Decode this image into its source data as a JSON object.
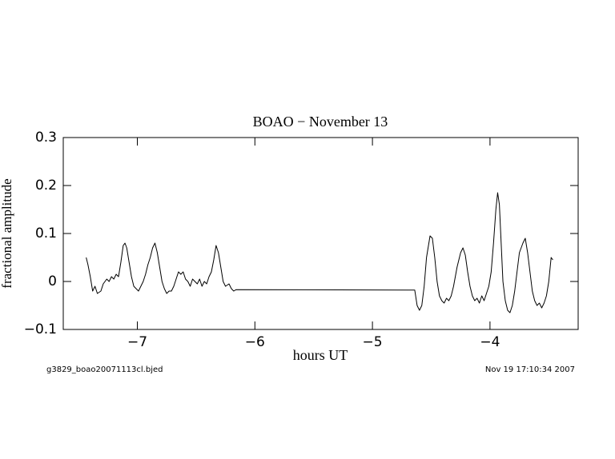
{
  "chart_data": {
    "type": "line",
    "title": "BOAO − November 13",
    "xlabel": "hours UT",
    "ylabel": "fractional amplitude",
    "footer_left": "g3829_boao20071113cl.bjed",
    "footer_right": "Nov 19 17:10:34 2007",
    "color": "#000000",
    "xlim": [
      -7.63,
      -3.25
    ],
    "ylim": [
      -0.1,
      0.3
    ],
    "xticks": [
      {
        "value": -7,
        "label": "−7"
      },
      {
        "value": -6,
        "label": "−6"
      },
      {
        "value": -5,
        "label": "−5"
      },
      {
        "value": -4,
        "label": "−4"
      }
    ],
    "yticks": [
      {
        "value": -0.1,
        "label": "−0.1"
      },
      0,
      0.1,
      0.2,
      0.3
    ],
    "x": [
      -7.435,
      -7.42,
      -7.4,
      -7.38,
      -7.36,
      -7.34,
      -7.31,
      -7.29,
      -7.26,
      -7.24,
      -7.22,
      -7.2,
      -7.18,
      -7.16,
      -7.14,
      -7.12,
      -7.105,
      -7.09,
      -7.07,
      -7.05,
      -7.03,
      -7.01,
      -6.99,
      -6.97,
      -6.95,
      -6.93,
      -6.91,
      -6.89,
      -6.87,
      -6.85,
      -6.83,
      -6.81,
      -6.79,
      -6.77,
      -6.75,
      -6.73,
      -6.71,
      -6.69,
      -6.67,
      -6.65,
      -6.63,
      -6.61,
      -6.59,
      -6.57,
      -6.55,
      -6.53,
      -6.51,
      -6.49,
      -6.47,
      -6.45,
      -6.43,
      -6.41,
      -6.39,
      -6.37,
      -6.35,
      -6.33,
      -6.31,
      -6.29,
      -6.27,
      -6.25,
      -6.22,
      -6.2,
      -6.18,
      -6.16,
      -4.64,
      -4.62,
      -4.6,
      -4.58,
      -4.56,
      -4.54,
      -4.51,
      -4.49,
      -4.47,
      -4.45,
      -4.43,
      -4.41,
      -4.39,
      -4.37,
      -4.35,
      -4.33,
      -4.31,
      -4.28,
      -4.25,
      -4.23,
      -4.21,
      -4.19,
      -4.17,
      -4.15,
      -4.13,
      -4.11,
      -4.09,
      -4.07,
      -4.05,
      -4.03,
      -4.01,
      -3.99,
      -3.97,
      -3.95,
      -3.935,
      -3.92,
      -3.905,
      -3.89,
      -3.87,
      -3.85,
      -3.83,
      -3.81,
      -3.79,
      -3.77,
      -3.75,
      -3.72,
      -3.7,
      -3.68,
      -3.66,
      -3.64,
      -3.62,
      -3.6,
      -3.58,
      -3.56,
      -3.54,
      -3.52,
      -3.5,
      -3.48,
      -3.465
    ],
    "values": [
      0.05,
      0.035,
      0.01,
      -0.02,
      -0.01,
      -0.025,
      -0.02,
      -0.005,
      0.005,
      0.0,
      0.01,
      0.005,
      0.015,
      0.01,
      0.04,
      0.075,
      0.08,
      0.07,
      0.04,
      0.01,
      -0.01,
      -0.015,
      -0.02,
      -0.01,
      0.0,
      0.015,
      0.035,
      0.05,
      0.07,
      0.08,
      0.06,
      0.03,
      0.0,
      -0.015,
      -0.025,
      -0.02,
      -0.02,
      -0.01,
      0.005,
      0.02,
      0.015,
      0.02,
      0.005,
      0.0,
      -0.01,
      0.005,
      0.0,
      -0.005,
      0.005,
      -0.01,
      0.0,
      -0.005,
      0.01,
      0.02,
      0.045,
      0.075,
      0.06,
      0.03,
      0.0,
      -0.01,
      -0.005,
      -0.015,
      -0.02,
      -0.017,
      -0.018,
      -0.05,
      -0.06,
      -0.05,
      -0.01,
      0.05,
      0.095,
      0.09,
      0.05,
      0.0,
      -0.03,
      -0.04,
      -0.045,
      -0.035,
      -0.04,
      -0.03,
      -0.01,
      0.03,
      0.06,
      0.07,
      0.055,
      0.02,
      -0.01,
      -0.03,
      -0.04,
      -0.035,
      -0.045,
      -0.03,
      -0.04,
      -0.025,
      -0.01,
      0.02,
      0.08,
      0.15,
      0.185,
      0.16,
      0.08,
      0.0,
      -0.04,
      -0.06,
      -0.065,
      -0.05,
      -0.02,
      0.02,
      0.06,
      0.08,
      0.09,
      0.06,
      0.02,
      -0.02,
      -0.04,
      -0.05,
      -0.045,
      -0.055,
      -0.045,
      -0.03,
      0.0,
      0.05,
      0.045
    ]
  }
}
